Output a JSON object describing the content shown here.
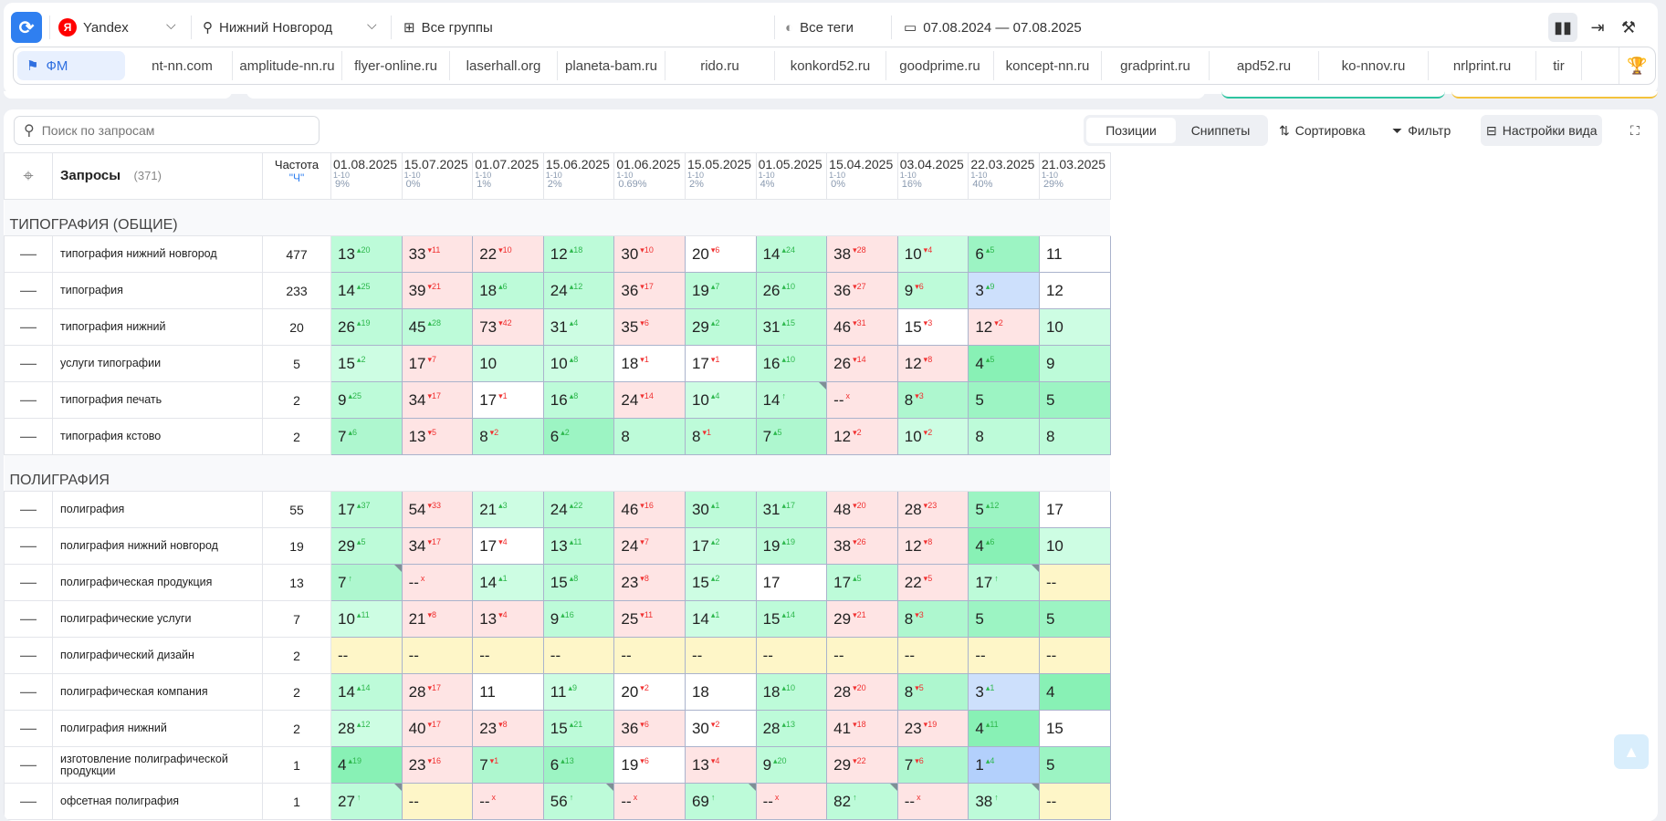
{
  "topbar": {
    "engine": "Yandex",
    "engine_logo": "Я",
    "region": "Нижний Новгород",
    "groups": "Все группы",
    "tags": "Все теги",
    "date_range": "07.08.2024 — 07.08.2025"
  },
  "domains": {
    "active": "ФМ",
    "items": [
      "nt-nn.com",
      "amplitude-nn.ru",
      "flyer-online.ru",
      "laserhall.org",
      "planeta-bam.ru",
      "rido.ru",
      "konkord52.ru",
      "goodprime.ru",
      "koncept-nn.ru",
      "gradprint.ru",
      "apd52.ru",
      "ko-nnov.ru",
      "nrlprint.ru",
      "tir"
    ]
  },
  "toolbar": {
    "search_placeholder": "Поиск по запросам",
    "positions": "Позиции",
    "snippets": "Сниппеты",
    "sort": "Сортировка",
    "filter": "Фильтр",
    "view_settings": "Настройки вида"
  },
  "table": {
    "queries_label": "Запросы",
    "queries_count": "(371)",
    "freq_label": "Частота",
    "freq_type": "\"Ч\"",
    "dates": [
      {
        "date": "01.08.2025",
        "range": "1-10",
        "pct": "9%"
      },
      {
        "date": "15.07.2025",
        "range": "1-10",
        "pct": "0%"
      },
      {
        "date": "01.07.2025",
        "range": "1-10",
        "pct": "1%"
      },
      {
        "date": "15.06.2025",
        "range": "1-10",
        "pct": "2%"
      },
      {
        "date": "01.06.2025",
        "range": "1-10",
        "pct": "0.69%"
      },
      {
        "date": "15.05.2025",
        "range": "1-10",
        "pct": "2%"
      },
      {
        "date": "01.05.2025",
        "range": "1-10",
        "pct": "4%"
      },
      {
        "date": "15.04.2025",
        "range": "1-10",
        "pct": "0%"
      },
      {
        "date": "03.04.2025",
        "range": "1-10",
        "pct": "16%"
      },
      {
        "date": "22.03.2025",
        "range": "1-10",
        "pct": "40%"
      },
      {
        "date": "21.03.2025",
        "range": "1-10",
        "pct": "29%"
      }
    ],
    "groups": [
      {
        "name": "ТИПОГРАФИЯ (ОБЩИЕ)",
        "rows": [
          {
            "q": "типография нижний новгород",
            "f": "477",
            "cells": [
              "13|+20|g2",
              "33|-11|r",
              "22|-10|r",
              "12|+18|g2",
              "30|-10|r",
              "20|-6|w",
              "14|+24|g2",
              "38|-28|r",
              "10|-4|g1",
              "6|+5|g4",
              "11||w"
            ]
          },
          {
            "q": "типография",
            "f": "233",
            "cells": [
              "14|+25|g2",
              "39|-21|r",
              "18|+6|g2",
              "24|+12|g2",
              "36|-17|r",
              "19|+7|g2",
              "26|+10|g2",
              "36|-27|r",
              "9|-6|g2",
              "3|+9|b",
              "12||w"
            ]
          },
          {
            "q": "типография нижний",
            "f": "20",
            "cells": [
              "26|+19|g2",
              "45|+28|g2",
              "73|-42|r",
              "31|+4|g1",
              "35|-6|r",
              "29|+2|g2",
              "31|+15|g2",
              "46|-31|r",
              "15|-3|w",
              "12|-2|r",
              "10||g1"
            ]
          },
          {
            "q": "услуги типографии",
            "f": "5",
            "cells": [
              "15|+2|g1",
              "17|-7|r",
              "10||g1",
              "10|+8|g1",
              "18|-1|w",
              "17|-1|w",
              "16|+10|g2",
              "26|-14|r",
              "12|-8|r",
              "4|+5|g5",
              "9||g2"
            ]
          },
          {
            "q": "типография печать",
            "f": "2",
            "cells": [
              "9|+25|g2",
              "34|-17|r",
              "17|-1|w",
              "16|+8|g2",
              "24|-14|r",
              "10|+4|g1",
              "14|↑|g2",
              "--|x|r",
              "8|-3|g3",
              "5||g4",
              "5||g4"
            ]
          },
          {
            "q": "типография кстово",
            "f": "2",
            "cells": [
              "7|+6|g3",
              "13|-5|r",
              "8|-2|g2",
              "6|+2|g4",
              "8||g2",
              "8|-1|g2",
              "7|+5|g3",
              "12|-2|r",
              "10|-2|g1",
              "8||g2",
              "8||g2"
            ]
          }
        ]
      },
      {
        "name": "ПОЛИГРАФИЯ",
        "rows": [
          {
            "q": "полиграфия",
            "f": "55",
            "cells": [
              "17|+37|g2",
              "54|-33|r",
              "21|+3|g1",
              "24|+22|g2",
              "46|-16|r",
              "30|+1|g2",
              "31|+17|g2",
              "48|-20|r",
              "28|-23|r",
              "5|+12|g4",
              "17||w"
            ]
          },
          {
            "q": "полиграфия нижний новгород",
            "f": "19",
            "cells": [
              "29|+5|g2",
              "34|-17|r",
              "17|-4|w",
              "13|+11|g2",
              "24|-7|r",
              "17|+2|g1",
              "19|+19|g2",
              "38|-26|r",
              "12|-8|r",
              "4|+6|g5",
              "10||g1"
            ]
          },
          {
            "q": "полиграфическая продукция",
            "f": "13",
            "cells": [
              "7|↑|g3",
              "--|x|r",
              "14|+1|g1",
              "15|+8|g2",
              "23|-8|r",
              "15|+2|g1",
              "17||w",
              "17|+5|g2",
              "22|-5|r",
              "17|↑|g2",
              "--||y"
            ]
          },
          {
            "q": "полиграфические услуги",
            "f": "7",
            "cells": [
              "10|+11|g1",
              "21|-8|r",
              "13|-4|r",
              "9|+16|g2",
              "25|-11|r",
              "14|+1|g1",
              "15|+14|g2",
              "29|-21|r",
              "8|-3|g3",
              "5||g4",
              "5||g4"
            ]
          },
          {
            "q": "полиграфический дизайн",
            "f": "2",
            "cells": [
              "--||y",
              "--||y",
              "--||y",
              "--||y",
              "--||y",
              "--||y",
              "--||y",
              "--||y",
              "--||y",
              "--||y",
              "--||y"
            ]
          },
          {
            "q": "полиграфическая компания",
            "f": "2",
            "cells": [
              "14|+14|g2",
              "28|-17|r",
              "11||w",
              "11|+9|g1",
              "20|-2|w",
              "18||w",
              "18|+10|g2",
              "28|-20|r",
              "8|-5|g3",
              "3|+1|b",
              "4||g5"
            ]
          },
          {
            "q": "полиграфия нижний",
            "f": "2",
            "cells": [
              "28|+12|g1",
              "40|-17|r",
              "23|-8|r",
              "15|+21|g2",
              "36|-6|r",
              "30|-2|w",
              "28|+13|g2",
              "41|-18|r",
              "23|-19|r",
              "4|+11|g5",
              "15||w"
            ]
          },
          {
            "q": "изготовление полиграфической продукции",
            "f": "1",
            "cells": [
              "4|+19|g5",
              "23|-16|r",
              "7|-1|g3",
              "6|+13|g4",
              "19|-6|w",
              "13|-4|r",
              "9|+20|g2",
              "29|-22|r",
              "7|-6|g3",
              "1|+4|b2",
              "5||g4"
            ]
          },
          {
            "q": "офсетная полиграфия",
            "f": "1",
            "cells": [
              "27|↑|g2",
              "--||y",
              "--|x|r",
              "56|↑|g2",
              "--|x|r",
              "69|↑|g2",
              "--|x|r",
              "82|↑|g2",
              "--|x|r",
              "38|↑|g2",
              "--||y"
            ]
          }
        ]
      }
    ]
  }
}
